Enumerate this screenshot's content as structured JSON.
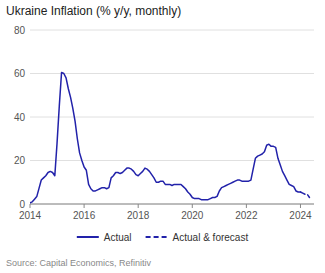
{
  "chart_data": {
    "type": "line",
    "title": "Ukraine Inflation (% y/y, monthly)",
    "source": "Source: Capital Economics, Refinitiv",
    "x": [
      2014.0,
      2014.083,
      2014.167,
      2014.25,
      2014.333,
      2014.417,
      2014.5,
      2014.583,
      2014.667,
      2014.75,
      2014.833,
      2014.917,
      2015.0,
      2015.083,
      2015.167,
      2015.25,
      2015.333,
      2015.417,
      2015.5,
      2015.583,
      2015.667,
      2015.75,
      2015.833,
      2015.917,
      2016.0,
      2016.083,
      2016.167,
      2016.25,
      2016.333,
      2016.417,
      2016.5,
      2016.583,
      2016.667,
      2016.75,
      2016.833,
      2016.917,
      2017.0,
      2017.083,
      2017.167,
      2017.25,
      2017.333,
      2017.417,
      2017.5,
      2017.583,
      2017.667,
      2017.75,
      2017.833,
      2017.917,
      2018.0,
      2018.083,
      2018.167,
      2018.25,
      2018.333,
      2018.417,
      2018.5,
      2018.583,
      2018.667,
      2018.75,
      2018.833,
      2018.917,
      2019.0,
      2019.083,
      2019.167,
      2019.25,
      2019.333,
      2019.417,
      2019.5,
      2019.583,
      2019.667,
      2019.75,
      2019.833,
      2019.917,
      2020.0,
      2020.083,
      2020.167,
      2020.25,
      2020.333,
      2020.417,
      2020.5,
      2020.583,
      2020.667,
      2020.75,
      2020.833,
      2020.917,
      2021.0,
      2021.083,
      2021.167,
      2021.25,
      2021.333,
      2021.417,
      2021.5,
      2021.583,
      2021.667,
      2021.75,
      2021.833,
      2021.917,
      2022.0,
      2022.083,
      2022.167,
      2022.25,
      2022.333,
      2022.417,
      2022.5,
      2022.583,
      2022.667,
      2022.75,
      2022.833,
      2022.917,
      2023.0,
      2023.083,
      2023.167,
      2023.25,
      2023.333,
      2023.417,
      2023.5,
      2023.583,
      2023.667,
      2023.75,
      2023.833,
      2023.917,
      2024.0,
      2024.083,
      2024.167,
      2024.25,
      2024.333
    ],
    "series": [
      {
        "name": "Actual",
        "color": "#2222aa",
        "line_style": "solid",
        "values": [
          0.5,
          1.0,
          2.2,
          3.4,
          7.2,
          11.0,
          12.0,
          13.0,
          14.5,
          15.0,
          14.5,
          13.0,
          28.0,
          45.0,
          60.5,
          60.0,
          58.0,
          53.0,
          49.0,
          44.0,
          38.0,
          30.0,
          23.5,
          20.0,
          17.0,
          15.5,
          9.0,
          7.0,
          6.0,
          6.0,
          6.5,
          7.0,
          7.5,
          7.5,
          7.0,
          7.5,
          12.0,
          13.0,
          14.5,
          14.5,
          14.0,
          14.5,
          15.5,
          16.5,
          16.5,
          16.0,
          15.0,
          13.5,
          13.0,
          14.0,
          15.0,
          16.5,
          16.0,
          15.0,
          13.5,
          12.0,
          10.0,
          10.0,
          10.5,
          10.5,
          9.0,
          9.0,
          9.0,
          8.5,
          9.0,
          9.0,
          9.0,
          9.0,
          8.0,
          7.0,
          5.5,
          4.5,
          3.0,
          2.5,
          2.5,
          2.5,
          2.0,
          2.0,
          2.0,
          2.0,
          2.5,
          3.0,
          3.0,
          3.5,
          6.0,
          7.5,
          8.0,
          8.5,
          9.0,
          9.5,
          10.0,
          10.5,
          11.0,
          11.0,
          10.5,
          10.5,
          10.5,
          10.5,
          11.0,
          16.0,
          21.0,
          22.0,
          22.5,
          23.0,
          24.0,
          27.0,
          27.5,
          26.5,
          26.5,
          26.0,
          21.0,
          18.0,
          15.0,
          13.0,
          11.0,
          9.0,
          8.5,
          8.0,
          6.0,
          5.5,
          5.5,
          null,
          null,
          null,
          null
        ]
      },
      {
        "name": "Actual & forecast",
        "color": "#2222aa",
        "line_style": "dashed",
        "values": [
          null,
          null,
          null,
          null,
          null,
          null,
          null,
          null,
          null,
          null,
          null,
          null,
          null,
          null,
          null,
          null,
          null,
          null,
          null,
          null,
          null,
          null,
          null,
          null,
          null,
          null,
          null,
          null,
          null,
          null,
          null,
          null,
          null,
          null,
          null,
          null,
          null,
          null,
          null,
          null,
          null,
          null,
          null,
          null,
          null,
          null,
          null,
          null,
          null,
          null,
          null,
          null,
          null,
          null,
          null,
          null,
          null,
          null,
          null,
          null,
          null,
          null,
          null,
          null,
          null,
          null,
          null,
          null,
          null,
          null,
          null,
          null,
          null,
          null,
          null,
          null,
          null,
          null,
          null,
          null,
          null,
          null,
          null,
          null,
          null,
          null,
          null,
          null,
          null,
          null,
          null,
          null,
          null,
          null,
          null,
          null,
          null,
          null,
          null,
          null,
          null,
          null,
          null,
          null,
          null,
          null,
          null,
          null,
          null,
          null,
          null,
          null,
          null,
          null,
          null,
          null,
          null,
          null,
          null,
          null,
          5.5,
          5.0,
          4.5,
          4.5,
          3.0
        ]
      }
    ],
    "xlim": [
      2014.0,
      2024.5
    ],
    "xticks": [
      2014,
      2016,
      2018,
      2020,
      2022,
      2024
    ],
    "ylim": [
      0,
      80
    ],
    "yticks": [
      0,
      20,
      40,
      60,
      80
    ],
    "grid": true,
    "legend": "bottom"
  }
}
